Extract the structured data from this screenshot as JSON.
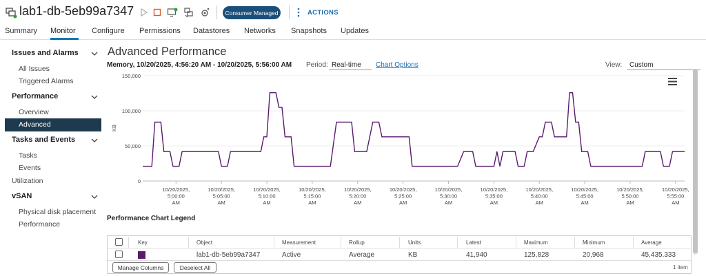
{
  "header": {
    "vm_name": "lab1-db-5eb99a7347",
    "badge": "Consumer Managed",
    "actions_label": "ACTIONS"
  },
  "tabs": [
    {
      "label": "Summary"
    },
    {
      "label": "Monitor"
    },
    {
      "label": "Configure"
    },
    {
      "label": "Permissions"
    },
    {
      "label": "Datastores"
    },
    {
      "label": "Networks"
    },
    {
      "label": "Snapshots"
    },
    {
      "label": "Updates"
    }
  ],
  "sidebar": {
    "issues_group": "Issues and Alarms",
    "all_issues": "All Issues",
    "triggered_alarms": "Triggered Alarms",
    "performance_group": "Performance",
    "overview": "Overview",
    "advanced": "Advanced",
    "tasks_group": "Tasks and Events",
    "tasks": "Tasks",
    "events": "Events",
    "utilization": "Utilization",
    "vsan_group": "vSAN",
    "physical_disk": "Physical disk placement",
    "vsan_performance": "Performance"
  },
  "main": {
    "title": "Advanced Performance",
    "subtitle": "Memory, 10/20/2025, 4:56:20 AM - 10/20/2025, 5:56:00 AM",
    "period_label": "Period:",
    "period_value": "Real-time",
    "chart_options": "Chart Options",
    "view_label": "View:",
    "view_value": "Custom"
  },
  "chart_data": {
    "type": "line",
    "ylabel": "KB",
    "ylim": [
      0,
      150000
    ],
    "yticks": [
      "150,000",
      "100,000",
      "50,000",
      "0"
    ],
    "xticks": [
      [
        "10/20/2025,",
        "5:00:00",
        "AM"
      ],
      [
        "10/20/2025,",
        "5:05:00",
        "AM"
      ],
      [
        "10/20/2025,",
        "5:10:00",
        "AM"
      ],
      [
        "10/20/2025,",
        "5:15:00",
        "AM"
      ],
      [
        "10/20/2025,",
        "5:20:00",
        "AM"
      ],
      [
        "10/20/2025,",
        "5:25:00",
        "AM"
      ],
      [
        "10/20/2025,",
        "5:30:00",
        "AM"
      ],
      [
        "10/20/2025,",
        "5:35:00",
        "AM"
      ],
      [
        "10/20/2025,",
        "5:40:00",
        "AM"
      ],
      [
        "10/20/2025,",
        "5:45:00",
        "AM"
      ],
      [
        "10/20/2025,",
        "5:50:00",
        "AM"
      ],
      [
        "10/20/2025,",
        "5:55:00",
        "AM"
      ]
    ],
    "series": [
      {
        "color": "#5a1a6e",
        "points": [
          [
            "4:56:20",
            20968
          ],
          [
            "4:57:20",
            20968
          ],
          [
            "4:57:40",
            83880
          ],
          [
            "4:58:20",
            83880
          ],
          [
            "4:58:40",
            41940
          ],
          [
            "4:59:20",
            41940
          ],
          [
            "4:59:40",
            20968
          ],
          [
            "5:00:20",
            20968
          ],
          [
            "5:00:40",
            41940
          ],
          [
            "5:04:40",
            41940
          ],
          [
            "5:05:00",
            20968
          ],
          [
            "5:05:40",
            20968
          ],
          [
            "5:06:00",
            41940
          ],
          [
            "5:09:20",
            41940
          ],
          [
            "5:09:40",
            62910
          ],
          [
            "5:10:00",
            62910
          ],
          [
            "5:10:20",
            125828
          ],
          [
            "5:11:00",
            125828
          ],
          [
            "5:11:20",
            104856
          ],
          [
            "5:11:40",
            104856
          ],
          [
            "5:12:00",
            62910
          ],
          [
            "5:12:40",
            62910
          ],
          [
            "5:13:00",
            20968
          ],
          [
            "5:17:00",
            20968
          ],
          [
            "5:17:40",
            83880
          ],
          [
            "5:19:20",
            83880
          ],
          [
            "5:19:40",
            41940
          ],
          [
            "5:21:00",
            41940
          ],
          [
            "5:21:40",
            83880
          ],
          [
            "5:22:20",
            83880
          ],
          [
            "5:22:40",
            62910
          ],
          [
            "5:25:40",
            62910
          ],
          [
            "5:26:00",
            20968
          ],
          [
            "5:31:00",
            20968
          ],
          [
            "5:31:40",
            41940
          ],
          [
            "5:32:40",
            41940
          ],
          [
            "5:33:00",
            20968
          ],
          [
            "5:35:00",
            20968
          ],
          [
            "5:35:20",
            41940
          ],
          [
            "5:35:40",
            20968
          ],
          [
            "5:36:00",
            41940
          ],
          [
            "5:37:20",
            41940
          ],
          [
            "5:37:40",
            20968
          ],
          [
            "5:38:20",
            20968
          ],
          [
            "5:38:40",
            41940
          ],
          [
            "5:39:20",
            41940
          ],
          [
            "5:40:00",
            62910
          ],
          [
            "5:40:20",
            62910
          ],
          [
            "5:40:40",
            83880
          ],
          [
            "5:41:20",
            83880
          ],
          [
            "5:41:40",
            62910
          ],
          [
            "5:43:00",
            62910
          ],
          [
            "5:43:20",
            125828
          ],
          [
            "5:43:40",
            125828
          ],
          [
            "5:44:00",
            83880
          ],
          [
            "5:44:20",
            83880
          ],
          [
            "5:44:40",
            41940
          ],
          [
            "5:45:20",
            41940
          ],
          [
            "5:45:40",
            20968
          ],
          [
            "5:51:20",
            20968
          ],
          [
            "5:51:40",
            41940
          ],
          [
            "5:53:20",
            41940
          ],
          [
            "5:53:40",
            20968
          ],
          [
            "5:54:20",
            20968
          ],
          [
            "5:54:40",
            41940
          ],
          [
            "5:56:00",
            41940
          ]
        ]
      }
    ],
    "grid": true
  },
  "legend": {
    "title": "Performance Chart Legend",
    "headers": [
      "Key",
      "Object",
      "Measurement",
      "Rollup",
      "Units",
      "Latest",
      "Maximum",
      "Minimum",
      "Average"
    ],
    "rows": [
      {
        "object": "lab1-db-5eb99a7347",
        "measurement": "Active",
        "rollup": "Average",
        "units": "KB",
        "latest": "41,940",
        "maximum": "125,828",
        "minimum": "20,968",
        "average": "45,435.333",
        "color": "#5a1a6e"
      }
    ],
    "manage_columns": "Manage Columns",
    "deselect_all": "Deselect All",
    "count": "1 item"
  }
}
